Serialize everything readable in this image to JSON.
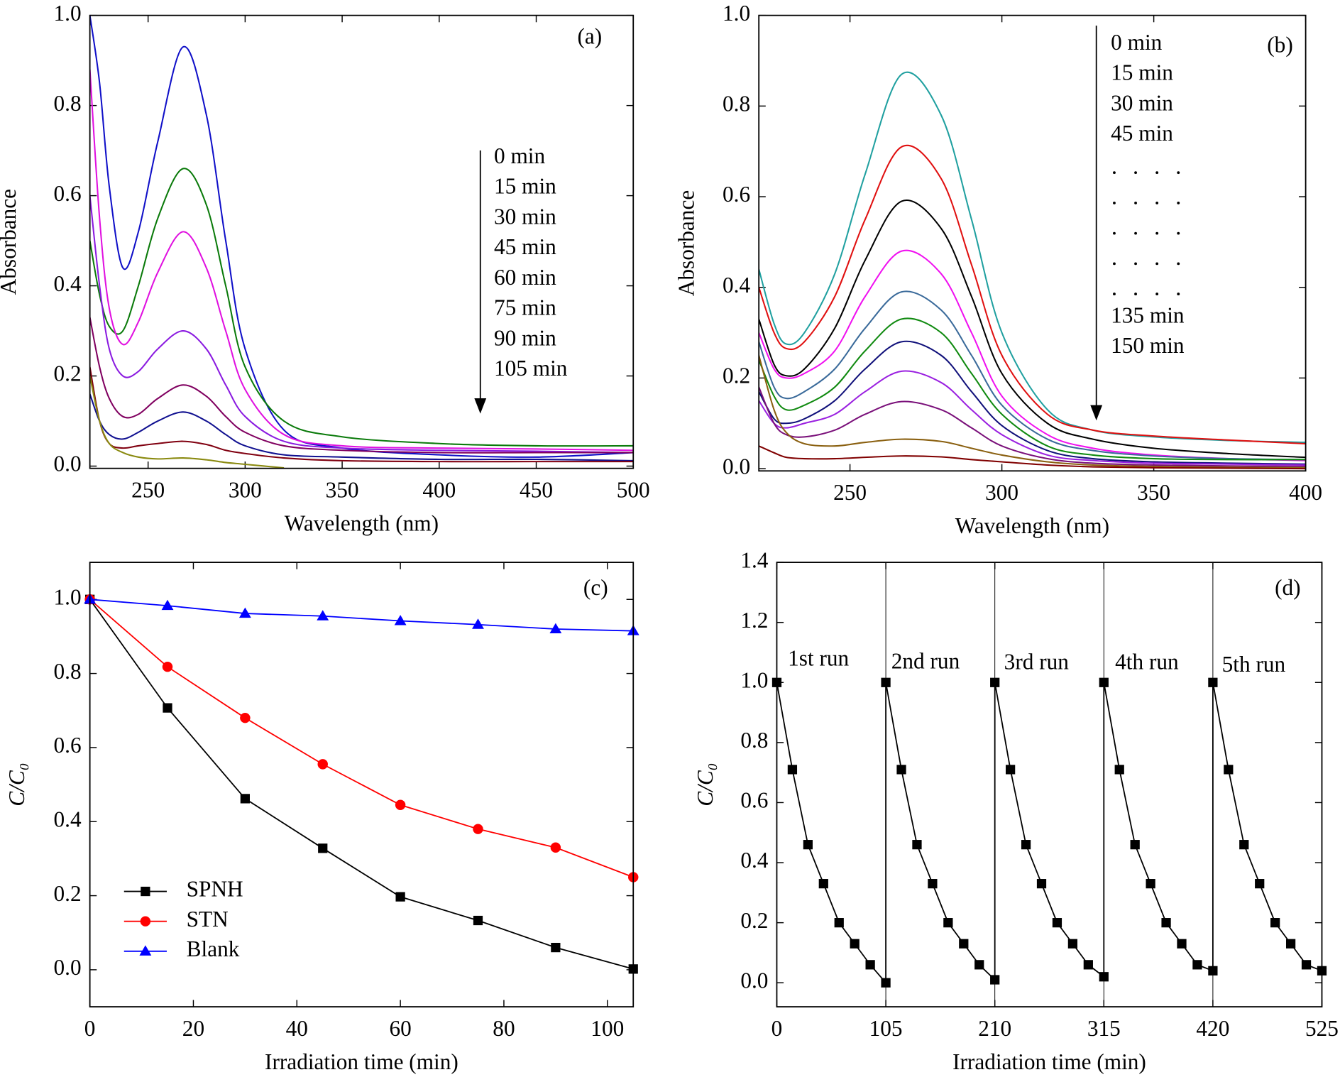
{
  "chart_data": [
    {
      "type": "line",
      "label": "(a)",
      "xlabel": "Wavelength (nm)",
      "ylabel": "Absorbance",
      "x": [
        220,
        225,
        230,
        237,
        245,
        255,
        268,
        280,
        290,
        300,
        320,
        350,
        400,
        450,
        500
      ],
      "xlim": [
        220,
        500
      ],
      "xticks": [
        250,
        300,
        350,
        400,
        450,
        500
      ],
      "ylim": [
        -0.005,
        1.0
      ],
      "yticks": [
        {
          "value": 0,
          "label": "0.0"
        },
        0.2,
        0.4,
        0.6,
        0.8,
        {
          "value": 1,
          "label": "1.0"
        }
      ],
      "series": [
        {
          "name": "0 min",
          "color": "#1010c8",
          "values": [
            1.0,
            0.85,
            0.62,
            0.44,
            0.52,
            0.72,
            0.93,
            0.78,
            0.5,
            0.26,
            0.08,
            0.04,
            0.025,
            0.02,
            0.03
          ]
        },
        {
          "name": "15 min",
          "color": "#0a7a0a",
          "values": [
            0.5,
            0.38,
            0.31,
            0.3,
            0.4,
            0.55,
            0.66,
            0.58,
            0.4,
            0.22,
            0.1,
            0.065,
            0.05,
            0.045,
            0.045
          ]
        },
        {
          "name": "30 min",
          "color": "#e010e0",
          "values": [
            0.88,
            0.55,
            0.35,
            0.27,
            0.32,
            0.43,
            0.52,
            0.44,
            0.3,
            0.17,
            0.07,
            0.045,
            0.04,
            0.038,
            0.035
          ]
        },
        {
          "name": "45 min",
          "color": "#8a1ae0",
          "values": [
            0.6,
            0.4,
            0.26,
            0.2,
            0.21,
            0.26,
            0.3,
            0.26,
            0.18,
            0.11,
            0.055,
            0.04,
            0.035,
            0.033,
            0.03
          ]
        },
        {
          "name": "60 min",
          "color": "#800060",
          "values": [
            0.33,
            0.22,
            0.15,
            0.11,
            0.115,
            0.15,
            0.18,
            0.155,
            0.11,
            0.075,
            0.045,
            0.035,
            0.03,
            0.03,
            0.03
          ]
        },
        {
          "name": "75 min",
          "color": "#101090",
          "values": [
            0.16,
            0.1,
            0.07,
            0.06,
            0.075,
            0.1,
            0.12,
            0.1,
            0.07,
            0.045,
            0.025,
            0.02,
            0.015,
            0.015,
            0.012
          ]
        },
        {
          "name": "90 min",
          "color": "#800010",
          "values": [
            0.22,
            0.1,
            0.05,
            0.04,
            0.045,
            0.05,
            0.055,
            0.048,
            0.035,
            0.028,
            0.018,
            0.012,
            0.01,
            0.01,
            0.01
          ]
        },
        {
          "name": "105 min",
          "color": "#8a8a10",
          "values": [
            0.2,
            0.1,
            0.05,
            0.03,
            0.02,
            0.016,
            0.018,
            0.014,
            0.008,
            0.004,
            -0.004,
            null,
            null,
            null,
            null
          ]
        }
      ]
    },
    {
      "type": "line",
      "label": "(b)",
      "xlabel": "Wavelength (nm)",
      "ylabel": "Absorbance",
      "x": [
        220,
        225,
        229,
        235,
        245,
        255,
        267,
        280,
        290,
        300,
        315,
        330,
        350,
        375,
        400
      ],
      "xlim": [
        220,
        400
      ],
      "xticks": [
        250,
        300,
        350,
        400
      ],
      "ylim": [
        -0.005,
        1.0
      ],
      "yticks": [
        {
          "value": 0,
          "label": "0.0"
        },
        0.2,
        0.4,
        0.6,
        0.8,
        {
          "value": 1,
          "label": "1.0"
        }
      ],
      "series": [
        {
          "name": "0 min",
          "color": "#20a0a0",
          "values": [
            0.44,
            0.32,
            0.275,
            0.3,
            0.43,
            0.65,
            0.87,
            0.78,
            0.55,
            0.3,
            0.13,
            0.085,
            0.07,
            0.062,
            0.058
          ]
        },
        {
          "name": "15 min",
          "color": "#e01010",
          "values": [
            0.4,
            0.3,
            0.265,
            0.28,
            0.38,
            0.55,
            0.71,
            0.64,
            0.45,
            0.25,
            0.12,
            0.085,
            0.072,
            0.063,
            0.055
          ]
        },
        {
          "name": "30 min",
          "color": "#000000",
          "values": [
            0.33,
            0.23,
            0.205,
            0.22,
            0.31,
            0.46,
            0.59,
            0.53,
            0.38,
            0.21,
            0.1,
            0.065,
            0.045,
            0.033,
            0.025
          ]
        },
        {
          "name": "45 min",
          "color": "#f010f0",
          "values": [
            0.3,
            0.22,
            0.2,
            0.21,
            0.26,
            0.38,
            0.48,
            0.43,
            0.3,
            0.16,
            0.075,
            0.045,
            0.03,
            0.022,
            0.018
          ]
        },
        {
          "color": "#3a6a9a",
          "values": [
            0.28,
            0.18,
            0.155,
            0.17,
            0.22,
            0.31,
            0.39,
            0.35,
            0.25,
            0.14,
            0.065,
            0.04,
            0.028,
            0.022,
            0.02
          ]
        },
        {
          "color": "#108a10",
          "values": [
            0.24,
            0.16,
            0.13,
            0.14,
            0.18,
            0.26,
            0.33,
            0.3,
            0.21,
            0.12,
            0.05,
            0.03,
            0.022,
            0.02,
            0.02
          ]
        },
        {
          "color": "#10107a",
          "values": [
            0.17,
            0.11,
            0.1,
            0.11,
            0.15,
            0.22,
            0.28,
            0.25,
            0.17,
            0.095,
            0.04,
            0.022,
            0.015,
            0.012,
            0.01
          ]
        },
        {
          "color": "#9a20e0",
          "values": [
            0.15,
            0.1,
            0.09,
            0.1,
            0.12,
            0.17,
            0.215,
            0.19,
            0.13,
            0.075,
            0.03,
            0.018,
            0.012,
            0.01,
            0.008
          ]
        },
        {
          "color": "#7a107a",
          "values": [
            0.18,
            0.1,
            0.075,
            0.07,
            0.085,
            0.12,
            0.148,
            0.13,
            0.09,
            0.05,
            0.022,
            0.012,
            0.008,
            0.006,
            0.005
          ]
        },
        {
          "name": "135 min",
          "color": "#8a6010",
          "values": [
            0.25,
            0.13,
            0.08,
            0.055,
            0.05,
            0.058,
            0.065,
            0.06,
            0.045,
            0.03,
            0.015,
            0.008,
            0.005,
            0.003,
            0.002
          ]
        },
        {
          "name": "150 min",
          "color": "#800000",
          "values": [
            0.05,
            0.035,
            0.025,
            0.022,
            0.022,
            0.025,
            0.028,
            0.026,
            0.02,
            0.015,
            0.008,
            0.004,
            0.002,
            0.001,
            0.0
          ]
        }
      ]
    },
    {
      "type": "line",
      "label": "(c)",
      "xlabel": "Irradiation time (min)",
      "ylabel": "C/C₀",
      "x": [
        0,
        15,
        30,
        45,
        60,
        75,
        90,
        105
      ],
      "xlim": [
        0,
        105
      ],
      "xticks": [
        0,
        20,
        40,
        60,
        80,
        100
      ],
      "ylim": [
        -0.1,
        1.1
      ],
      "yticks": [
        {
          "value": 0,
          "label": "0.0"
        },
        0.2,
        0.4,
        0.6,
        0.8,
        {
          "value": 1,
          "label": "1.0"
        }
      ],
      "series": [
        {
          "name": "SPNH",
          "color": "#000000",
          "marker": "square",
          "values": [
            1.0,
            0.707,
            0.462,
            0.328,
            0.197,
            0.133,
            0.06,
            0.002
          ]
        },
        {
          "name": "STN",
          "color": "#ff0000",
          "marker": "circle",
          "values": [
            1.0,
            0.818,
            0.68,
            0.555,
            0.445,
            0.38,
            0.33,
            0.25
          ]
        },
        {
          "name": "Blank",
          "color": "#0000ff",
          "marker": "triangle",
          "values": [
            1.0,
            0.983,
            0.962,
            0.955,
            0.942,
            0.932,
            0.92,
            0.915
          ]
        }
      ]
    },
    {
      "type": "line",
      "label": "(d)",
      "xlabel": "Irradiation time (min)",
      "ylabel": "C/C₀",
      "x": [
        0,
        15,
        30,
        45,
        60,
        75,
        90,
        105,
        105,
        120,
        135,
        150,
        165,
        180,
        195,
        210,
        210,
        225,
        240,
        255,
        270,
        285,
        300,
        315,
        315,
        330,
        345,
        360,
        375,
        390,
        405,
        420,
        420,
        435,
        450,
        465,
        480,
        495,
        510,
        525
      ],
      "xlim": [
        0,
        525
      ],
      "xticks": [
        0,
        105,
        210,
        315,
        420,
        525
      ],
      "ylim": [
        -0.08,
        1.4
      ],
      "yticks": [
        {
          "value": 0,
          "label": "0.0"
        },
        0.2,
        0.4,
        0.6,
        0.8,
        {
          "value": 1,
          "label": "1.0"
        },
        1.2,
        1.4
      ],
      "annotations": [
        "1st run",
        "2nd run",
        "3rd run",
        "4th run",
        "5th run"
      ],
      "series": [
        {
          "color": "#000000",
          "marker": "square",
          "values": [
            1.0,
            0.71,
            0.46,
            0.33,
            0.2,
            0.13,
            0.06,
            0.0,
            1.0,
            0.71,
            0.46,
            0.33,
            0.2,
            0.13,
            0.06,
            0.01,
            1.0,
            0.71,
            0.46,
            0.33,
            0.2,
            0.13,
            0.06,
            0.02,
            1.0,
            0.71,
            0.46,
            0.33,
            0.2,
            0.13,
            0.06,
            0.04,
            1.0,
            0.71,
            0.46,
            0.33,
            0.2,
            0.13,
            0.06,
            0.04
          ]
        }
      ]
    }
  ]
}
